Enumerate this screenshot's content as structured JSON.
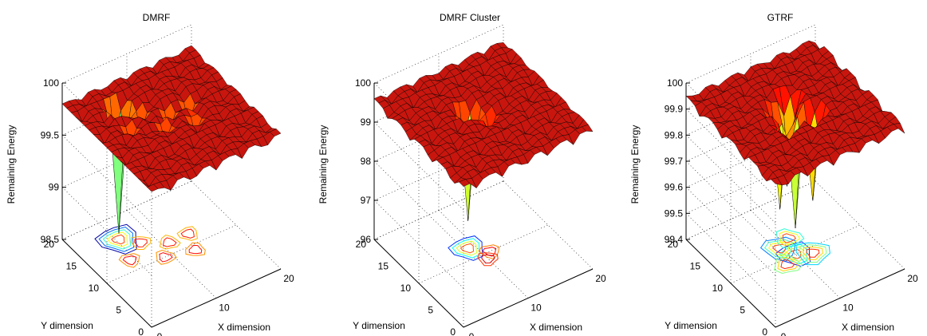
{
  "chart_data": [
    {
      "type": "surface",
      "title": "DMRF",
      "xlabel": "X dimension",
      "ylabel": "Y dimension",
      "zlabel": "Remaining Energy",
      "x_ticks": [
        "0",
        "10",
        "20"
      ],
      "y_ticks": [
        "0",
        "5",
        "10",
        "15",
        "20"
      ],
      "z_ticks": [
        "98.5",
        "99",
        "99.5",
        "100"
      ],
      "xlim": [
        0,
        20
      ],
      "ylim": [
        0,
        20
      ],
      "zlim": [
        98.5,
        100
      ],
      "grid": true,
      "surface_baseline": 99.8,
      "surface_color": "#c8160e",
      "colormap": "jet",
      "has_contour_projection": true,
      "dips": [
        {
          "x": 6,
          "y": 16,
          "z": 98.56
        },
        {
          "x": 5,
          "y": 12,
          "z": 99.6
        },
        {
          "x": 8,
          "y": 14,
          "z": 99.55
        },
        {
          "x": 9,
          "y": 10,
          "z": 99.6
        },
        {
          "x": 11,
          "y": 12,
          "z": 99.55
        },
        {
          "x": 13,
          "y": 9,
          "z": 99.6
        },
        {
          "x": 14,
          "y": 12,
          "z": 99.55
        }
      ]
    },
    {
      "type": "surface",
      "title": "DMRF Cluster",
      "xlabel": "X dimension",
      "ylabel": "Y dimension",
      "zlabel": "Remaining Energy",
      "x_ticks": [
        "0",
        "10",
        "20"
      ],
      "y_ticks": [
        "0",
        "5",
        "10",
        "15",
        "20"
      ],
      "z_ticks": [
        "96",
        "97",
        "98",
        "99",
        "100"
      ],
      "xlim": [
        0,
        20
      ],
      "ylim": [
        0,
        20
      ],
      "zlim": [
        96,
        100
      ],
      "grid": true,
      "surface_baseline": 99.6,
      "surface_color": "#c8160e",
      "colormap": "jet",
      "has_contour_projection": true,
      "dips": [
        {
          "x": 9,
          "y": 12,
          "z": 96.7
        },
        {
          "x": 11,
          "y": 10,
          "z": 99.0
        },
        {
          "x": 10,
          "y": 9,
          "z": 99.3
        }
      ]
    },
    {
      "type": "surface",
      "title": "GTRF",
      "xlabel": "X dimension",
      "ylabel": "Y dimension",
      "zlabel": "Remaining Energy",
      "x_ticks": [
        "0",
        "10",
        "20"
      ],
      "y_ticks": [
        "0",
        "5",
        "10",
        "15",
        "20"
      ],
      "z_ticks": [
        "99.4",
        "99.5",
        "99.6",
        "99.7",
        "99.8",
        "99.9",
        "100"
      ],
      "xlim": [
        0,
        20
      ],
      "ylim": [
        0,
        20
      ],
      "zlim": [
        99.4,
        100
      ],
      "grid": true,
      "surface_baseline": 99.95,
      "surface_color": "#c8160e",
      "colormap": "jet",
      "has_contour_projection": true,
      "dips": [
        {
          "x": 10,
          "y": 10,
          "z": 99.5
        },
        {
          "x": 9,
          "y": 12,
          "z": 99.55
        },
        {
          "x": 12,
          "y": 9,
          "z": 99.6
        },
        {
          "x": 11,
          "y": 13,
          "z": 99.65
        },
        {
          "x": 8,
          "y": 9,
          "z": 99.7
        }
      ]
    }
  ]
}
